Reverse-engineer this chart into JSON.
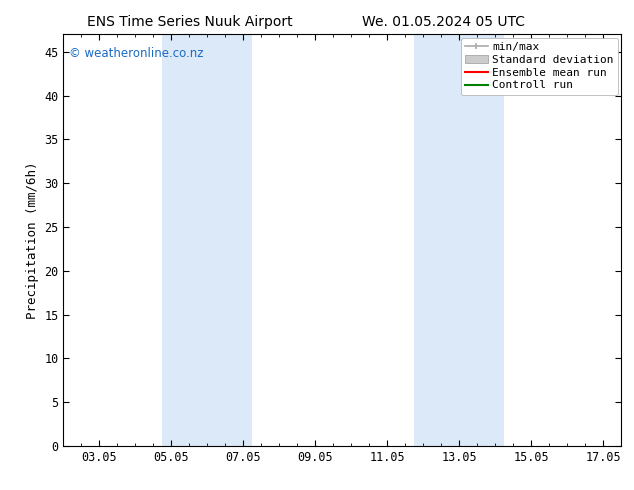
{
  "title_left": "ENS Time Series Nuuk Airport",
  "title_right": "We. 01.05.2024 05 UTC",
  "ylabel": "Precipitation (mm/6h)",
  "ylim": [
    0,
    47
  ],
  "yticks": [
    0,
    5,
    10,
    15,
    20,
    25,
    30,
    35,
    40,
    45
  ],
  "xtick_labels": [
    "03.05",
    "05.05",
    "07.05",
    "09.05",
    "11.05",
    "13.05",
    "15.05",
    "17.05"
  ],
  "xtick_days": [
    3,
    5,
    7,
    9,
    11,
    13,
    15,
    17
  ],
  "xlim": [
    1.0,
    16.5
  ],
  "shade_bands": [
    [
      3.75,
      5.0
    ],
    [
      5.0,
      6.25
    ],
    [
      10.75,
      12.0
    ],
    [
      12.0,
      13.25
    ]
  ],
  "shade_color": "#dce9f8",
  "copyright_text": "© weatheronline.co.nz",
  "copyright_color": "#1a6bc4",
  "bg_color": "#ffffff",
  "spine_color": "#000000",
  "tick_color": "#000000",
  "font_family": "DejaVu Sans Mono"
}
